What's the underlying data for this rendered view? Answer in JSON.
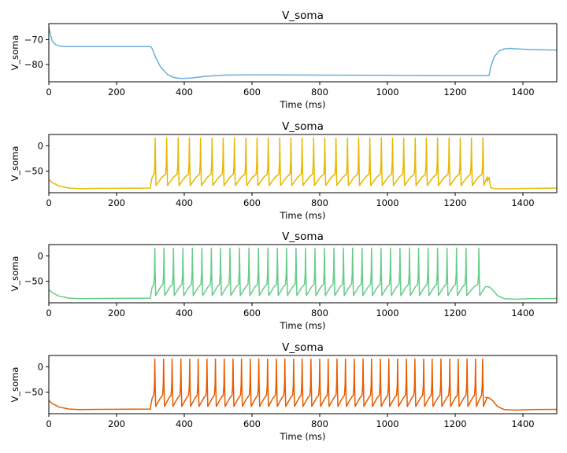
{
  "chart_data": [
    {
      "type": "line",
      "title": "V_soma",
      "xlabel": "Time (ms)",
      "ylabel": "V_soma",
      "xlim": [
        0,
        1500
      ],
      "ylim": [
        -87,
        -63.5
      ],
      "xticks": [
        0,
        200,
        400,
        600,
        800,
        1000,
        1200,
        1400
      ],
      "yticks": [
        -80,
        -70
      ],
      "color": "#6baed6",
      "series": [
        {
          "x": [
            0,
            5,
            10,
            20,
            30,
            50,
            80,
            120,
            200,
            300,
            305,
            315,
            330,
            350,
            370,
            390,
            420,
            460,
            520,
            600,
            800,
            1000,
            1200,
            1300,
            1305,
            1315,
            1330,
            1345,
            1360,
            1380,
            1420,
            1500
          ],
          "y": [
            -65,
            -68,
            -70.5,
            -72,
            -72.5,
            -72.8,
            -72.8,
            -72.8,
            -72.8,
            -72.8,
            -73.5,
            -77,
            -81,
            -84,
            -85.3,
            -85.7,
            -85.5,
            -84.8,
            -84.3,
            -84.2,
            -84.3,
            -84.4,
            -84.5,
            -84.5,
            -81,
            -77,
            -74.5,
            -73.7,
            -73.5,
            -73.7,
            -74,
            -74.2
          ]
        }
      ]
    },
    {
      "type": "line",
      "title": "V_soma",
      "xlabel": "Time (ms)",
      "ylabel": "V_soma",
      "xlim": [
        0,
        1500
      ],
      "ylim": [
        -92,
        22
      ],
      "xticks": [
        0,
        200,
        400,
        600,
        800,
        1000,
        1200,
        1400
      ],
      "yticks": [
        -50,
        0
      ],
      "color": "#e6b800",
      "spike_times": [
        314,
        348,
        382,
        415,
        448,
        482,
        515,
        548,
        582,
        615,
        648,
        682,
        715,
        748,
        782,
        815,
        848,
        882,
        915,
        948,
        982,
        1015,
        1048,
        1082,
        1115,
        1148,
        1182,
        1215,
        1248,
        1282
      ],
      "spike_peak": 15,
      "trough": -78,
      "ahp": -56,
      "stim_end": 1300,
      "series": [
        {
          "x": [
            0,
            10,
            30,
            60,
            90,
            150,
            300,
            302,
            305
          ],
          "y": [
            -66,
            -72,
            -79,
            -83,
            -84,
            -83.5,
            -83,
            -72,
            -62
          ]
        }
      ],
      "tail": {
        "x": [
          1295,
          1300,
          1305,
          1315,
          1340,
          1380,
          1420,
          1500
        ],
        "y": [
          -70,
          -62,
          -82,
          -84,
          -84.5,
          -84,
          -83.5,
          -83
        ]
      }
    },
    {
      "type": "line",
      "title": "V_soma",
      "xlabel": "Time (ms)",
      "ylabel": "V_soma",
      "xlim": [
        0,
        1500
      ],
      "ylim": [
        -92,
        22
      ],
      "xticks": [
        0,
        200,
        400,
        600,
        800,
        1000,
        1200,
        1400
      ],
      "yticks": [
        -50,
        0
      ],
      "color": "#66cc88",
      "spike_times": [
        313,
        340,
        368,
        396,
        424,
        452,
        480,
        507,
        535,
        563,
        591,
        619,
        647,
        675,
        702,
        730,
        758,
        786,
        814,
        842,
        870,
        897,
        925,
        953,
        981,
        1009,
        1037,
        1065,
        1092,
        1120,
        1148,
        1176,
        1204,
        1232,
        1270
      ],
      "spike_peak": 15,
      "trough": -78,
      "ahp": -56,
      "stim_end": 1300,
      "series": [
        {
          "x": [
            0,
            10,
            30,
            60,
            90,
            150,
            300,
            302,
            305
          ],
          "y": [
            -66,
            -72,
            -79,
            -83,
            -84,
            -83.5,
            -83,
            -72,
            -62
          ]
        }
      ],
      "tail": {
        "x": [
          1290,
          1300,
          1310,
          1325,
          1345,
          1380,
          1420,
          1500
        ],
        "y": [
          -60,
          -61,
          -66,
          -78,
          -84,
          -85,
          -84,
          -83.5
        ]
      }
    },
    {
      "type": "line",
      "title": "V_soma",
      "xlabel": "Time (ms)",
      "ylabel": "V_soma",
      "xlim": [
        0,
        1500
      ],
      "ylim": [
        -92,
        22
      ],
      "xticks": [
        0,
        200,
        400,
        600,
        800,
        1000,
        1200,
        1400
      ],
      "yticks": [
        -50,
        0
      ],
      "color": "#e65c00",
      "spike_times": [
        313,
        339,
        364,
        390,
        416,
        441,
        467,
        492,
        518,
        544,
        569,
        595,
        620,
        646,
        672,
        697,
        723,
        748,
        774,
        800,
        825,
        851,
        876,
        902,
        928,
        953,
        979,
        1004,
        1030,
        1056,
        1081,
        1107,
        1132,
        1158,
        1184,
        1209,
        1235,
        1260,
        1281
      ],
      "spike_peak": 15,
      "trough": -78,
      "ahp": -56,
      "stim_end": 1300,
      "series": [
        {
          "x": [
            0,
            10,
            30,
            60,
            90,
            150,
            300,
            302,
            305
          ],
          "y": [
            -66,
            -72,
            -79,
            -83,
            -84,
            -83.5,
            -83,
            -72,
            -62
          ]
        }
      ],
      "tail": {
        "x": [
          1290,
          1300,
          1310,
          1325,
          1345,
          1380,
          1420,
          1500
        ],
        "y": [
          -60,
          -61,
          -66,
          -78,
          -84,
          -85,
          -84,
          -83.5
        ]
      }
    }
  ]
}
